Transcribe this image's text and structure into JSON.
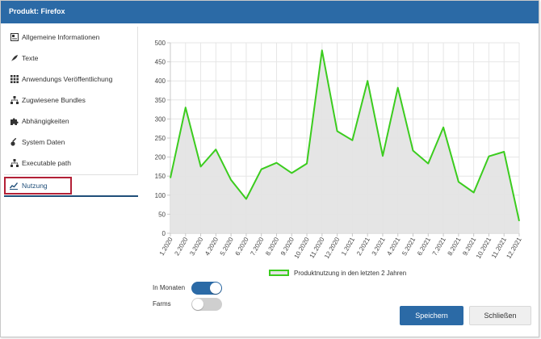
{
  "dialog": {
    "title": "Produkt: Firefox"
  },
  "sidebar": {
    "items": [
      {
        "label": "Allgemeine Informationen",
        "icon": "info-card-icon"
      },
      {
        "label": "Texte",
        "icon": "feather-icon"
      },
      {
        "label": "Anwendungs Veröffentlichung",
        "icon": "grid-icon"
      },
      {
        "label": "Zugwiesene Bundles",
        "icon": "hierarchy-icon"
      },
      {
        "label": "Abhängigkeiten",
        "icon": "puzzle-icon"
      },
      {
        "label": "System Daten",
        "icon": "key-icon"
      },
      {
        "label": "Executable path",
        "icon": "hierarchy-icon"
      },
      {
        "label": "Nutzung",
        "icon": "chart-icon",
        "active": true
      }
    ]
  },
  "chart_data": {
    "type": "area",
    "categories": [
      "1.2020",
      "2.2020",
      "3.2020",
      "4.2020",
      "5.2020",
      "6.2020",
      "7.2020",
      "8.2020",
      "9.2020",
      "10.2020",
      "11.2020",
      "12.2020",
      "1.2021",
      "2.2021",
      "3.2021",
      "4.2021",
      "5.2021",
      "6.2021",
      "7.2021",
      "8.2021",
      "9.2021",
      "10.2021",
      "11.2021",
      "12.2021"
    ],
    "series": [
      {
        "name": "Produktnutzung in den letzten 2 Jahren",
        "values": [
          145,
          330,
          175,
          220,
          140,
          90,
          168,
          185,
          158,
          183,
          480,
          268,
          244,
          400,
          203,
          382,
          217,
          183,
          278,
          135,
          107,
          202,
          214,
          32
        ]
      }
    ],
    "ylim": [
      0,
      500
    ],
    "yticks": [
      0,
      50,
      100,
      150,
      200,
      250,
      300,
      350,
      400,
      450,
      500
    ],
    "grid": true,
    "legend_position": "bottom",
    "colors": {
      "line": "#3bcc1e",
      "fill": "#e4e4e4"
    }
  },
  "toggles": [
    {
      "label": "In Monaten",
      "on": true
    },
    {
      "label": "Farms",
      "on": false
    }
  ],
  "buttons": {
    "save": "Speichern",
    "close": "Schließen"
  }
}
